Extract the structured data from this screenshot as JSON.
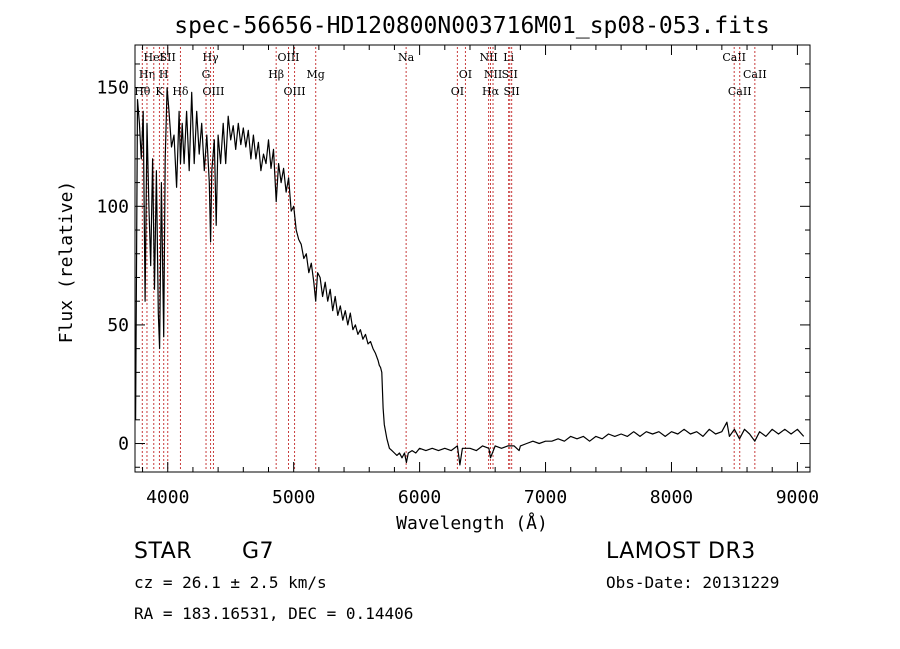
{
  "chart_data": {
    "type": "line",
    "title": "spec-56656-HD120800N003716M01_sp08-053.fits",
    "xlabel": "Wavelength (Å)",
    "ylabel": "Flux (relative)",
    "xlim": [
      3740,
      9100
    ],
    "ylim": [
      -12,
      168
    ],
    "x_ticks": [
      4000,
      5000,
      6000,
      7000,
      8000,
      9000
    ],
    "y_ticks": [
      0,
      50,
      100,
      150
    ],
    "series": [
      {
        "name": "flux",
        "color": "#000000",
        "points": [
          [
            3745,
            10
          ],
          [
            3760,
            145
          ],
          [
            3775,
            135
          ],
          [
            3790,
            120
          ],
          [
            3805,
            140
          ],
          [
            3820,
            60
          ],
          [
            3835,
            135
          ],
          [
            3850,
            100
          ],
          [
            3865,
            75
          ],
          [
            3880,
            120
          ],
          [
            3895,
            65
          ],
          [
            3910,
            115
          ],
          [
            3925,
            55
          ],
          [
            3935,
            40
          ],
          [
            3950,
            110
          ],
          [
            3968,
            45
          ],
          [
            3980,
            120
          ],
          [
            3995,
            150
          ],
          [
            4010,
            140
          ],
          [
            4030,
            125
          ],
          [
            4050,
            130
          ],
          [
            4070,
            108
          ],
          [
            4090,
            140
          ],
          [
            4101,
            118
          ],
          [
            4115,
            135
          ],
          [
            4130,
            118
          ],
          [
            4150,
            140
          ],
          [
            4170,
            115
          ],
          [
            4190,
            148
          ],
          [
            4210,
            118
          ],
          [
            4230,
            140
          ],
          [
            4250,
            122
          ],
          [
            4270,
            135
          ],
          [
            4290,
            115
          ],
          [
            4310,
            130
          ],
          [
            4330,
            110
          ],
          [
            4340,
            85
          ],
          [
            4350,
            115
          ],
          [
            4370,
            128
          ],
          [
            4385,
            92
          ],
          [
            4400,
            130
          ],
          [
            4420,
            118
          ],
          [
            4440,
            135
          ],
          [
            4460,
            118
          ],
          [
            4480,
            138
          ],
          [
            4500,
            128
          ],
          [
            4520,
            134
          ],
          [
            4540,
            124
          ],
          [
            4560,
            135
          ],
          [
            4580,
            126
          ],
          [
            4600,
            133
          ],
          [
            4620,
            125
          ],
          [
            4640,
            132
          ],
          [
            4660,
            120
          ],
          [
            4680,
            130
          ],
          [
            4700,
            120
          ],
          [
            4720,
            127
          ],
          [
            4740,
            115
          ],
          [
            4760,
            122
          ],
          [
            4780,
            118
          ],
          [
            4800,
            128
          ],
          [
            4820,
            116
          ],
          [
            4840,
            124
          ],
          [
            4861,
            102
          ],
          [
            4880,
            118
          ],
          [
            4900,
            110
          ],
          [
            4920,
            116
          ],
          [
            4940,
            106
          ],
          [
            4960,
            112
          ],
          [
            4980,
            98
          ],
          [
            5000,
            100
          ],
          [
            5020,
            90
          ],
          [
            5040,
            86
          ],
          [
            5060,
            84
          ],
          [
            5080,
            78
          ],
          [
            5100,
            80
          ],
          [
            5120,
            72
          ],
          [
            5140,
            76
          ],
          [
            5160,
            68
          ],
          [
            5175,
            60
          ],
          [
            5190,
            72
          ],
          [
            5210,
            70
          ],
          [
            5230,
            62
          ],
          [
            5250,
            68
          ],
          [
            5270,
            60
          ],
          [
            5290,
            65
          ],
          [
            5310,
            56
          ],
          [
            5330,
            62
          ],
          [
            5350,
            54
          ],
          [
            5370,
            58
          ],
          [
            5390,
            52
          ],
          [
            5410,
            56
          ],
          [
            5430,
            50
          ],
          [
            5450,
            55
          ],
          [
            5470,
            48
          ],
          [
            5490,
            50
          ],
          [
            5510,
            46
          ],
          [
            5530,
            48
          ],
          [
            5550,
            44
          ],
          [
            5570,
            46
          ],
          [
            5590,
            42
          ],
          [
            5610,
            43
          ],
          [
            5630,
            40
          ],
          [
            5650,
            38
          ],
          [
            5670,
            35
          ],
          [
            5680,
            33
          ],
          [
            5690,
            32
          ],
          [
            5700,
            30
          ],
          [
            5710,
            15
          ],
          [
            5720,
            8
          ],
          [
            5740,
            2
          ],
          [
            5760,
            -2
          ],
          [
            5780,
            -3
          ],
          [
            5800,
            -4
          ],
          [
            5820,
            -5
          ],
          [
            5840,
            -4
          ],
          [
            5860,
            -6
          ],
          [
            5880,
            -4
          ],
          [
            5895,
            -8
          ],
          [
            5910,
            -4
          ],
          [
            5940,
            -3
          ],
          [
            5970,
            -4
          ],
          [
            6000,
            -2
          ],
          [
            6050,
            -3
          ],
          [
            6100,
            -2
          ],
          [
            6150,
            -3
          ],
          [
            6200,
            -2
          ],
          [
            6250,
            -3
          ],
          [
            6300,
            -1
          ],
          [
            6320,
            -9
          ],
          [
            6340,
            -2
          ],
          [
            6400,
            -2
          ],
          [
            6450,
            -3
          ],
          [
            6500,
            -1
          ],
          [
            6550,
            -2
          ],
          [
            6563,
            -6
          ],
          [
            6600,
            -1
          ],
          [
            6650,
            -2
          ],
          [
            6700,
            -1
          ],
          [
            6750,
            -1
          ],
          [
            6790,
            -3
          ],
          [
            6800,
            -1
          ],
          [
            6850,
            0
          ],
          [
            6900,
            1
          ],
          [
            6950,
            0
          ],
          [
            7000,
            1
          ],
          [
            7050,
            1
          ],
          [
            7100,
            2
          ],
          [
            7150,
            1
          ],
          [
            7200,
            3
          ],
          [
            7250,
            2
          ],
          [
            7300,
            3
          ],
          [
            7350,
            1
          ],
          [
            7400,
            3
          ],
          [
            7450,
            2
          ],
          [
            7500,
            4
          ],
          [
            7550,
            3
          ],
          [
            7600,
            4
          ],
          [
            7650,
            3
          ],
          [
            7700,
            5
          ],
          [
            7750,
            3
          ],
          [
            7800,
            5
          ],
          [
            7850,
            4
          ],
          [
            7900,
            5
          ],
          [
            7950,
            3
          ],
          [
            8000,
            5
          ],
          [
            8050,
            4
          ],
          [
            8100,
            6
          ],
          [
            8150,
            4
          ],
          [
            8200,
            5
          ],
          [
            8250,
            3
          ],
          [
            8300,
            6
          ],
          [
            8350,
            4
          ],
          [
            8400,
            5
          ],
          [
            8440,
            9
          ],
          [
            8460,
            3
          ],
          [
            8500,
            6
          ],
          [
            8540,
            2
          ],
          [
            8580,
            6
          ],
          [
            8620,
            4
          ],
          [
            8662,
            1
          ],
          [
            8700,
            5
          ],
          [
            8750,
            3
          ],
          [
            8800,
            6
          ],
          [
            8850,
            4
          ],
          [
            8900,
            6
          ],
          [
            8950,
            4
          ],
          [
            9000,
            6
          ],
          [
            9050,
            3
          ]
        ]
      }
    ],
    "line_markers": [
      {
        "label": "Hθ",
        "x": 3798,
        "row": 3
      },
      {
        "label": "Hη",
        "x": 3835,
        "row": 2
      },
      {
        "label": "HeI",
        "x": 3889,
        "row": 1
      },
      {
        "label": "K",
        "x": 3934,
        "row": 3
      },
      {
        "label": "H",
        "x": 3968,
        "row": 2
      },
      {
        "label": "SII",
        "x": 4000,
        "row": 1
      },
      {
        "label": "Hδ",
        "x": 4101,
        "row": 3
      },
      {
        "label": "Hγ",
        "x": 4340,
        "row": 1
      },
      {
        "label": "G",
        "x": 4304,
        "row": 2
      },
      {
        "label": "OIII",
        "x": 4363,
        "row": 3
      },
      {
        "label": "OIII",
        "x": 4959,
        "row": 1
      },
      {
        "label": "Hβ",
        "x": 4861,
        "row": 2
      },
      {
        "label": "OIII",
        "x": 5007,
        "row": 3
      },
      {
        "label": "Mg",
        "x": 5175,
        "row": 2
      },
      {
        "label": "Na",
        "x": 5893,
        "row": 1
      },
      {
        "label": "OI",
        "x": 6364,
        "row": 2
      },
      {
        "label": "OI",
        "x": 6300,
        "row": 3
      },
      {
        "label": "NII",
        "x": 6548,
        "row": 1
      },
      {
        "label": "NII",
        "x": 6583,
        "row": 2
      },
      {
        "label": "Hα",
        "x": 6563,
        "row": 3
      },
      {
        "label": "Li",
        "x": 6707,
        "row": 1
      },
      {
        "label": "SII",
        "x": 6716,
        "row": 2
      },
      {
        "label": "SII",
        "x": 6731,
        "row": 3
      },
      {
        "label": "CaII",
        "x": 8498,
        "row": 1
      },
      {
        "label": "CaII",
        "x": 8662,
        "row": 2
      },
      {
        "label": "CaII",
        "x": 8542,
        "row": 3
      }
    ],
    "marker_color": "#c83c3c"
  },
  "info": {
    "object_type": "STAR",
    "subclass": "G7",
    "redshift_line": "cz = 26.1 ± 2.5 km/s",
    "coords_line": "RA = 183.16531, DEC =    0.14406",
    "survey": "LAMOST DR3",
    "obs_date": "Obs-Date: 20131229"
  }
}
